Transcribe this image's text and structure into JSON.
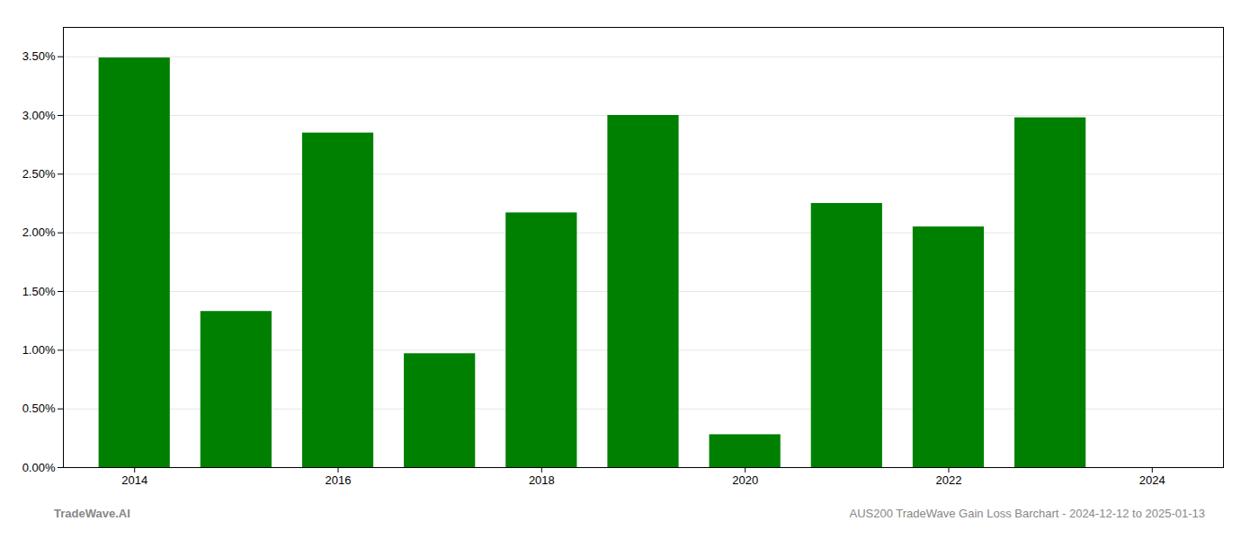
{
  "chart_data": {
    "type": "bar",
    "x": [
      2014,
      2015,
      2016,
      2017,
      2018,
      2019,
      2020,
      2021,
      2022,
      2023
    ],
    "values": [
      3.49,
      1.33,
      2.85,
      0.97,
      2.17,
      3.0,
      0.28,
      2.25,
      2.05,
      2.98
    ],
    "color": "#008000",
    "xlim": [
      2013.3,
      2024.7
    ],
    "xticks": [
      2014,
      2016,
      2018,
      2020,
      2022,
      2024
    ],
    "ylim": [
      0.0,
      3.75
    ],
    "yticks": [
      {
        "value": 0.0,
        "label": "0.00%"
      },
      {
        "value": 0.5,
        "label": "0.50%"
      },
      {
        "value": 1.0,
        "label": "1.00%"
      },
      {
        "value": 1.5,
        "label": "1.50%"
      },
      {
        "value": 2.0,
        "label": "2.00%"
      },
      {
        "value": 2.5,
        "label": "2.50%"
      },
      {
        "value": 3.0,
        "label": "3.00%"
      },
      {
        "value": 3.5,
        "label": "3.50%"
      }
    ],
    "grid": true,
    "annotations": [
      "TradeWave.AI",
      "AUS200 TradeWave Gain Loss Barchart - 2024-12-12 to 2025-01-13"
    ]
  }
}
